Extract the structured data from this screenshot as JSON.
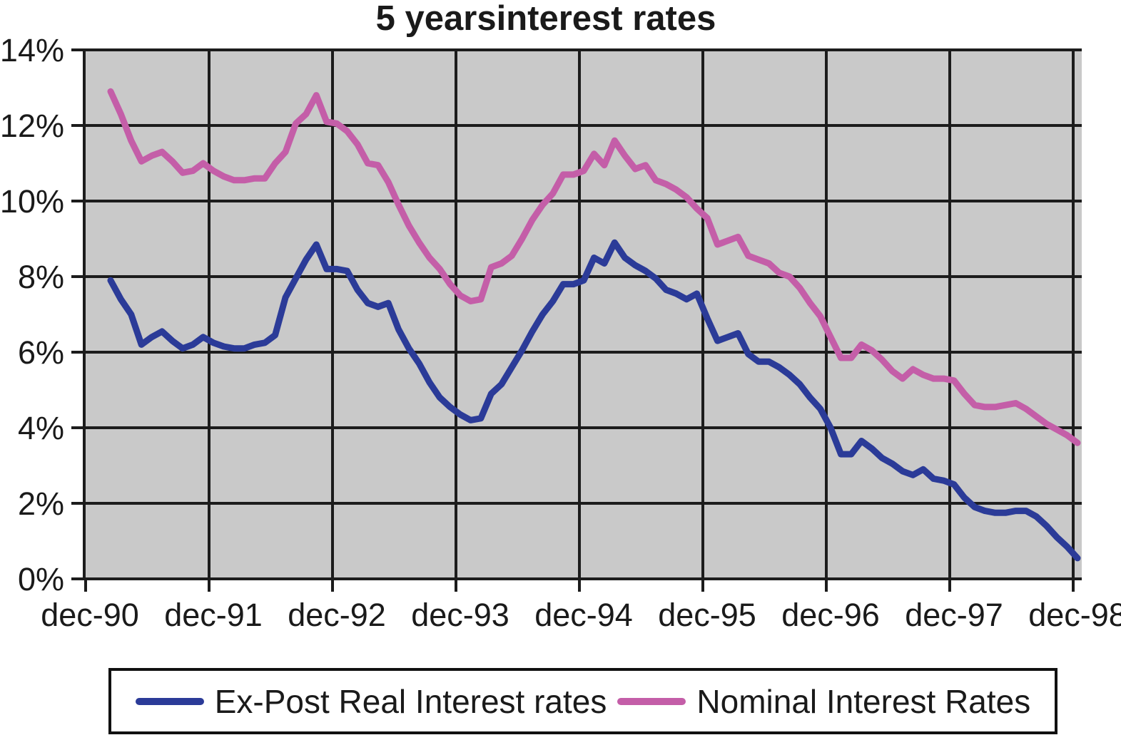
{
  "chart_data": {
    "type": "line",
    "title": "5 yearsinterest rates",
    "x_tick_labels": [
      "dec-90",
      "dec-91",
      "dec-92",
      "dec-93",
      "dec-94",
      "dec-95",
      "dec-96",
      "dec-97",
      "dec-98"
    ],
    "y_tick_labels": [
      "14%",
      "12%",
      "10%",
      "8%",
      "6%",
      "4%",
      "2%",
      "0%"
    ],
    "ylim": [
      0,
      14
    ],
    "y_unit": "%",
    "x_frequency": "monthly",
    "data_start": "feb-91",
    "data_end": "dec-98",
    "grid": true,
    "legend_position": "bottom",
    "plot_bg_color": "#c9c9c9",
    "grid_color": "#1c1c1c",
    "series": [
      {
        "name": "Ex-Post Real Interest rates",
        "color": "#2b3b98",
        "values": [
          7.9,
          7.4,
          7.0,
          6.2,
          6.4,
          6.55,
          6.3,
          6.1,
          6.2,
          6.4,
          6.25,
          6.15,
          6.1,
          6.1,
          6.2,
          6.25,
          6.45,
          7.45,
          7.95,
          8.45,
          8.85,
          8.2,
          8.2,
          8.15,
          7.65,
          7.3,
          7.2,
          7.3,
          6.6,
          6.1,
          5.7,
          5.2,
          4.8,
          4.55,
          4.35,
          4.2,
          4.25,
          4.9,
          5.15,
          5.6,
          6.05,
          6.55,
          7.0,
          7.35,
          7.8,
          7.8,
          7.9,
          8.5,
          8.35,
          8.9,
          8.5,
          8.3,
          8.15,
          7.95,
          7.65,
          7.55,
          7.4,
          7.55,
          6.9,
          6.3,
          6.4,
          6.5,
          5.95,
          5.75,
          5.75,
          5.6,
          5.4,
          5.15,
          4.8,
          4.5,
          4.0,
          3.3,
          3.3,
          3.65,
          3.45,
          3.2,
          3.05,
          2.85,
          2.75,
          2.9,
          2.65,
          2.6,
          2.5,
          2.15,
          1.9,
          1.8,
          1.75,
          1.75,
          1.8,
          1.8,
          1.65,
          1.4,
          1.1,
          0.85,
          0.55
        ]
      },
      {
        "name": "Nominal Interest Rates",
        "color": "#c45ea8",
        "values": [
          12.9,
          12.3,
          11.6,
          11.05,
          11.2,
          11.3,
          11.05,
          10.75,
          10.8,
          11.0,
          10.8,
          10.65,
          10.55,
          10.55,
          10.6,
          10.6,
          11.0,
          11.3,
          12.05,
          12.3,
          12.8,
          12.1,
          12.05,
          11.85,
          11.5,
          11.0,
          10.95,
          10.5,
          9.9,
          9.35,
          8.9,
          8.5,
          8.2,
          7.8,
          7.5,
          7.35,
          7.4,
          8.25,
          8.35,
          8.55,
          9.0,
          9.5,
          9.9,
          10.2,
          10.7,
          10.7,
          10.8,
          11.25,
          10.95,
          11.6,
          11.2,
          10.85,
          10.95,
          10.55,
          10.45,
          10.3,
          10.1,
          9.8,
          9.55,
          8.85,
          8.95,
          9.05,
          8.55,
          8.45,
          8.35,
          8.1,
          8.0,
          7.7,
          7.3,
          6.95,
          6.4,
          5.85,
          5.85,
          6.2,
          6.05,
          5.8,
          5.5,
          5.3,
          5.55,
          5.4,
          5.3,
          5.3,
          5.25,
          4.9,
          4.6,
          4.55,
          4.55,
          4.6,
          4.65,
          4.5,
          4.3,
          4.1,
          3.95,
          3.8,
          3.6
        ]
      }
    ]
  },
  "legend": {
    "items": [
      {
        "label": "Ex-Post Real Interest rates",
        "color": "#2b3b98"
      },
      {
        "label": "Nominal Interest Rates",
        "color": "#c45ea8"
      }
    ]
  }
}
